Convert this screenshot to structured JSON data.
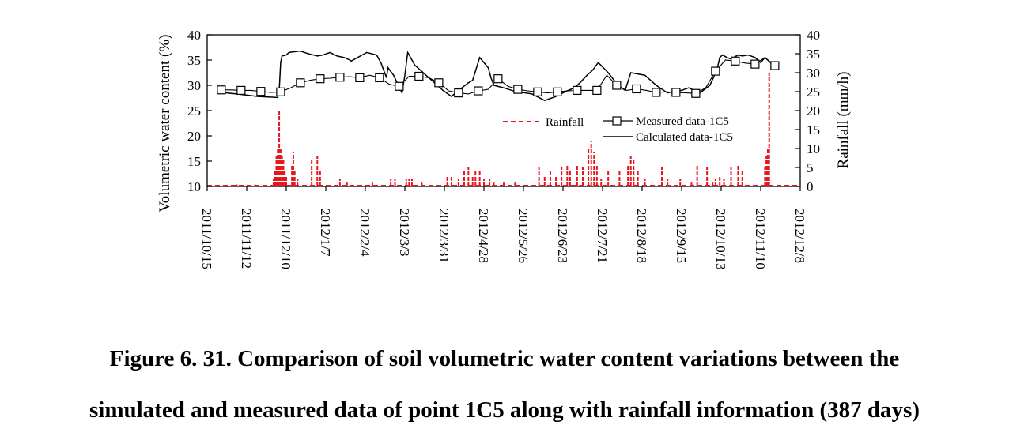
{
  "caption": {
    "line1": "Figure 6. 31. Comparison of soil volumetric water content variations between the",
    "line2": "simulated and measured data of point 1C5 along with rainfall information (387 days)"
  },
  "chart_data": {
    "type": "line",
    "title": "",
    "xlabel": "",
    "ylabel": "Volumetric water content (%)",
    "y2label": "Rainfall (mm/h)",
    "xlim": [
      "2011/10/15",
      "2012/12/8"
    ],
    "x_ticks": [
      "2011/10/15",
      "2011/11/12",
      "2011/12/10",
      "2012/1/7",
      "2012/2/4",
      "2012/3/3",
      "2012/3/31",
      "2012/4/28",
      "2012/5/26",
      "2012/6/23",
      "2012/7/21",
      "2012/8/18",
      "2012/9/15",
      "2012/10/13",
      "2012/11/10",
      "2012/12/8"
    ],
    "ylim": [
      10,
      40
    ],
    "y_ticks": [
      "10",
      "15",
      "20",
      "25",
      "30",
      "35",
      "40"
    ],
    "y2lim": [
      0,
      40
    ],
    "y2_ticks": [
      "0",
      "5",
      "10",
      "15",
      "20",
      "25",
      "30",
      "35",
      "40"
    ],
    "grid": false,
    "legend": {
      "placement": "inside-right",
      "entries": [
        "Rainfall",
        "Measured data-1C5",
        "Calculated data-1C5"
      ]
    },
    "colors": {
      "rainfall": "#e8141c",
      "lines": "#000000"
    },
    "series": [
      {
        "name": "Measured data-1C5",
        "axis": "left",
        "style": "line-with-open-squares",
        "x": [
          "2011/10/25",
          "2011/11/1",
          "2011/11/8",
          "2011/11/15",
          "2011/11/22",
          "2011/11/29",
          "2011/12/6",
          "2011/12/13",
          "2011/12/20",
          "2011/12/27",
          "2012/1/3",
          "2012/1/10",
          "2012/1/17",
          "2012/1/24",
          "2012/1/31",
          "2012/2/7",
          "2012/2/14",
          "2012/2/21",
          "2012/2/28",
          "2012/3/6",
          "2012/3/13",
          "2012/3/20",
          "2012/3/27",
          "2012/4/3",
          "2012/4/10",
          "2012/4/17",
          "2012/4/24",
          "2012/5/1",
          "2012/5/8",
          "2012/5/15",
          "2012/5/22",
          "2012/5/29",
          "2012/6/5",
          "2012/6/12",
          "2012/6/19",
          "2012/6/26",
          "2012/7/3",
          "2012/7/10",
          "2012/7/17",
          "2012/7/24",
          "2012/7/31",
          "2012/8/7",
          "2012/8/14",
          "2012/8/21",
          "2012/8/28",
          "2012/9/4",
          "2012/9/11",
          "2012/9/18",
          "2012/9/25",
          "2012/10/2",
          "2012/10/9",
          "2012/10/16",
          "2012/10/23",
          "2012/10/30",
          "2012/11/6",
          "2012/11/13",
          "2012/11/20"
        ],
        "values": [
          29.1,
          29.1,
          29.0,
          29.0,
          28.8,
          28.6,
          28.7,
          29.5,
          30.5,
          31.0,
          31.3,
          31.4,
          31.6,
          31.7,
          31.5,
          32.0,
          31.5,
          30.2,
          29.8,
          31.8,
          31.8,
          31.5,
          30.5,
          28.9,
          28.5,
          28.3,
          28.9,
          29.2,
          31.3,
          29.8,
          29.2,
          28.9,
          28.7,
          28.5,
          28.7,
          28.9,
          29.0,
          29.0,
          29.0,
          32.0,
          30.0,
          29.0,
          29.3,
          29.0,
          28.6,
          28.7,
          28.6,
          28.5,
          28.4,
          29.5,
          32.8,
          35.0,
          34.8,
          34.4,
          34.2,
          35.5,
          33.9
        ]
      },
      {
        "name": "Calculated data-1C5",
        "axis": "left",
        "style": "line",
        "x": [
          "2011/10/25",
          "2011/11/5",
          "2011/11/20",
          "2011/12/4",
          "2011/12/5",
          "2011/12/6",
          "2011/12/7",
          "2011/12/10",
          "2011/12/12",
          "2011/12/20",
          "2011/12/25",
          "2012/1/1",
          "2012/1/5",
          "2012/1/10",
          "2012/1/15",
          "2012/1/20",
          "2012/1/24",
          "2012/1/25",
          "2012/2/5",
          "2012/2/12",
          "2012/2/15",
          "2012/2/17",
          "2012/2/19",
          "2012/2/20",
          "2012/2/24",
          "2012/3/1",
          "2012/3/3",
          "2012/3/5",
          "2012/3/10",
          "2012/3/20",
          "2012/3/30",
          "2012/4/5",
          "2012/4/10",
          "2012/4/17",
          "2012/4/20",
          "2012/4/25",
          "2012/5/1",
          "2012/5/3",
          "2012/5/5",
          "2012/5/12",
          "2012/5/20",
          "2012/6/1",
          "2012/6/10",
          "2012/6/18",
          "2012/6/25",
          "2012/7/1",
          "2012/7/5",
          "2012/7/10",
          "2012/7/14",
          "2012/7/18",
          "2012/7/25",
          "2012/8/1",
          "2012/8/6",
          "2012/8/10",
          "2012/8/20",
          "2012/8/28",
          "2012/9/5",
          "2012/9/10",
          "2012/9/15",
          "2012/9/20",
          "2012/9/28",
          "2012/10/5",
          "2012/10/10",
          "2012/10/12",
          "2012/10/14",
          "2012/10/17",
          "2012/10/20",
          "2012/10/25",
          "2012/10/28",
          "2012/11/1",
          "2012/11/6",
          "2012/11/10",
          "2012/11/13",
          "2012/11/18",
          "2012/11/21"
        ],
        "values": [
          28.6,
          28.3,
          27.8,
          27.6,
          29.0,
          34.5,
          35.8,
          36.0,
          36.5,
          36.8,
          36.3,
          35.8,
          36.0,
          36.5,
          35.8,
          35.5,
          35.0,
          34.8,
          36.5,
          36.0,
          34.5,
          33.0,
          31.5,
          33.5,
          32.0,
          28.5,
          32.0,
          36.5,
          34.0,
          31.5,
          29.0,
          27.8,
          29.0,
          30.5,
          31.0,
          35.5,
          33.5,
          31.5,
          30.0,
          29.5,
          28.8,
          28.3,
          27.0,
          27.8,
          28.8,
          29.5,
          30.5,
          32.0,
          33.0,
          34.5,
          32.5,
          30.0,
          29.0,
          32.5,
          32.0,
          30.0,
          28.5,
          28.8,
          29.0,
          29.5,
          28.5,
          30.0,
          33.0,
          35.5,
          36.0,
          35.5,
          35.2,
          36.0,
          35.8,
          36.0,
          35.5,
          34.5,
          35.5,
          34.2,
          34.0
        ]
      },
      {
        "name": "Rainfall",
        "axis": "right",
        "style": "bars",
        "x": [
          "2011/11/5",
          "2011/11/18",
          "2011/12/1",
          "2011/12/2",
          "2011/12/3",
          "2011/12/4",
          "2011/12/5",
          "2011/12/6",
          "2011/12/7",
          "2011/12/8",
          "2011/12/9",
          "2011/12/10",
          "2011/12/14",
          "2011/12/15",
          "2011/12/16",
          "2011/12/18",
          "2011/12/28",
          "2012/1/1",
          "2012/1/3",
          "2012/1/17",
          "2012/1/22",
          "2012/2/9",
          "2012/2/22",
          "2012/2/25",
          "2012/3/4",
          "2012/3/6",
          "2012/3/8",
          "2012/3/15",
          "2012/4/2",
          "2012/4/5",
          "2012/4/10",
          "2012/4/14",
          "2012/4/17",
          "2012/4/20",
          "2012/4/22",
          "2012/4/25",
          "2012/4/28",
          "2012/5/2",
          "2012/5/5",
          "2012/5/12",
          "2012/5/20",
          "2012/6/6",
          "2012/6/10",
          "2012/6/14",
          "2012/6/18",
          "2012/6/22",
          "2012/6/26",
          "2012/6/28",
          "2012/7/3",
          "2012/7/7",
          "2012/7/11",
          "2012/7/13",
          "2012/7/15",
          "2012/7/17",
          "2012/7/20",
          "2012/7/25",
          "2012/8/2",
          "2012/8/8",
          "2012/8/10",
          "2012/8/12",
          "2012/8/15",
          "2012/8/20",
          "2012/9/1",
          "2012/9/5",
          "2012/9/14",
          "2012/9/22",
          "2012/9/26",
          "2012/10/3",
          "2012/10/7",
          "2012/10/9",
          "2012/10/12",
          "2012/10/15",
          "2012/10/20",
          "2012/10/25",
          "2012/10/28",
          "2012/11/13",
          "2012/11/14",
          "2012/11/15",
          "2012/11/16"
        ],
        "values": [
          0.5,
          0.5,
          2,
          4,
          8,
          10,
          20,
          10,
          8,
          7,
          4,
          3,
          6,
          9,
          4,
          2,
          7,
          8,
          4,
          2,
          1,
          1,
          2,
          2,
          2,
          2,
          2,
          1,
          3,
          3,
          2,
          4,
          5,
          3,
          4,
          4,
          2,
          2,
          1,
          1,
          1,
          5,
          3,
          4,
          3,
          5,
          6,
          4,
          6,
          5,
          10,
          12,
          9,
          6,
          2,
          4,
          4,
          6,
          8,
          7,
          4,
          2,
          5,
          2,
          2,
          1,
          6,
          5,
          1,
          2,
          3,
          2,
          5,
          6,
          4,
          5,
          8,
          10,
          30
        ]
      }
    ]
  }
}
